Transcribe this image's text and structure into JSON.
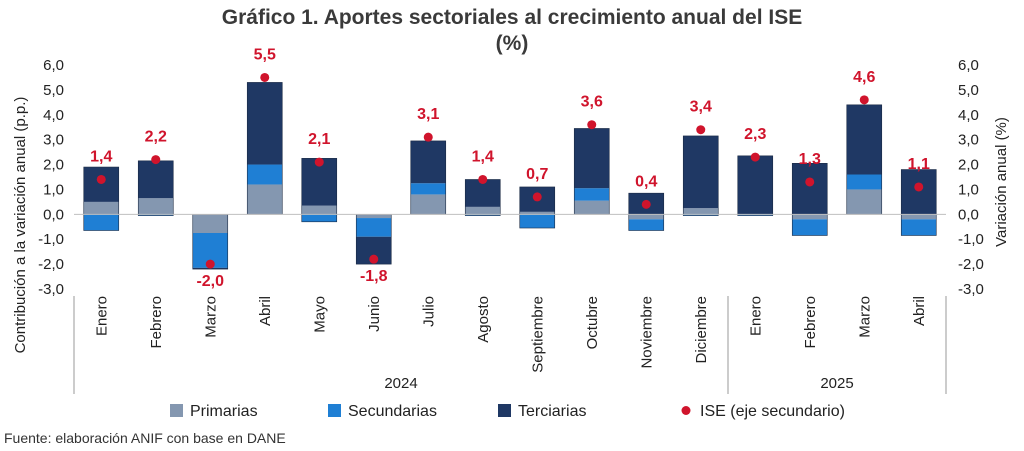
{
  "chart_data": {
    "type": "bar",
    "title_line1": "Gráfico 1. Aportes sectoriales al crecimiento anual del ISE",
    "title_line2": "(%)",
    "ylabel_left": "Contribución a la variación anual (p.p.)",
    "ylabel_right": "Variación anual (%)",
    "yticks": [
      "6,0",
      "5,0",
      "4,0",
      "3,0",
      "2,0",
      "1,0",
      "0,0",
      "-1,0",
      "-2,0",
      "-3,0"
    ],
    "ylim": [
      -3,
      6
    ],
    "categories": [
      "Enero",
      "Febrero",
      "Marzo",
      "Abril",
      "Mayo",
      "Junio",
      "Julio",
      "Agosto",
      "Septiembre",
      "Octubre",
      "Noviembre",
      "Diciembre",
      "Enero",
      "Febrero",
      "Marzo",
      "Abril"
    ],
    "years": [
      {
        "label": "2024",
        "start": 0,
        "end": 11
      },
      {
        "label": "2025",
        "start": 12,
        "end": 15
      }
    ],
    "series": [
      {
        "name": "Primarias",
        "color": "#8497b0",
        "values": [
          0.5,
          0.65,
          -0.75,
          1.2,
          0.35,
          -0.15,
          0.8,
          0.3,
          0.1,
          0.55,
          -0.2,
          0.25,
          0.0,
          -0.2,
          1.0,
          -0.2
        ]
      },
      {
        "name": "Secundarias",
        "color": "#1f7fd4",
        "values": [
          -0.65,
          -0.05,
          -1.4,
          0.8,
          -0.3,
          -0.75,
          0.45,
          -0.05,
          -0.55,
          0.5,
          -0.45,
          -0.05,
          -0.05,
          -0.65,
          0.6,
          -0.65
        ]
      },
      {
        "name": "Terciarias",
        "color": "#1f3864",
        "values": [
          1.4,
          1.5,
          -0.05,
          3.3,
          1.9,
          -1.1,
          1.7,
          1.1,
          1.0,
          2.4,
          0.85,
          2.9,
          2.35,
          2.05,
          2.8,
          1.8
        ]
      },
      {
        "name": "ISE (eje secundario)",
        "color": "#d0142c",
        "values": [
          1.4,
          2.2,
          -2.0,
          5.5,
          2.1,
          -1.8,
          3.1,
          1.4,
          0.7,
          3.6,
          0.4,
          3.4,
          2.3,
          1.3,
          4.6,
          1.1
        ],
        "labels": [
          "1,4",
          "2,2",
          "-2,0",
          "5,5",
          "2,1",
          "-1,8",
          "3,1",
          "1,4",
          "0,7",
          "3,6",
          "0,4",
          "3,4",
          "2,3",
          "1,3",
          "4,6",
          "1,1"
        ]
      }
    ]
  },
  "source": "Fuente: elaboración ANIF con base en DANE"
}
